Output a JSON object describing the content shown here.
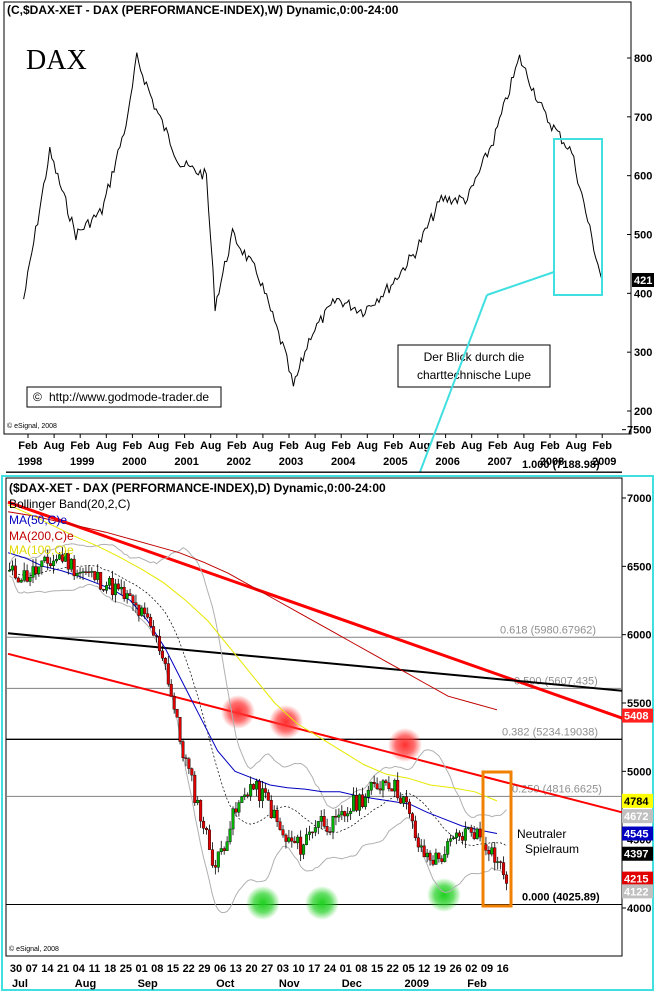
{
  "top_chart": {
    "header": "(C,$DAX-XET - DAX (PERFORMANCE-INDEX),W) Dynamic,0:00-24:00",
    "big_label": "DAX",
    "url_box": "http://www.godmode-trader.de",
    "copyright_symbol": "©",
    "esignal": "© eSignal, 2008",
    "lupe_box": [
      "Der Blick durch die",
      "charttechnische Lupe"
    ],
    "last_price_label": "421",
    "colors": {
      "highlight_box": "#40e0e0",
      "line": "#000000"
    }
  },
  "bottom_chart": {
    "header": "($DAX-XET - DAX (PERFORMANCE-INDEX),D) Dynamic,0:00-24:00",
    "bollinger": "Bollinger Band(20,2,C)",
    "ma50": "MA(50,C)e",
    "ma200": "MA(200,C)e",
    "ma_extra": "MA(100,C)e",
    "fib_labels": [
      "1.000 (7188.98)",
      "0.618 (5980.67962)",
      "0.500 (5607.435)",
      "0.382 (5234.19038)",
      "0.250 (4816.6625)",
      "0.000 (4025.89)"
    ],
    "neutral_box": [
      "Neutraler",
      "Spielraum"
    ],
    "esignal": "© eSignal, 2008",
    "price_tags": [
      {
        "text": "5408",
        "bg": "#ff2020",
        "fg": "#ffffff"
      },
      {
        "text": "4784",
        "bg": "#ffff00",
        "fg": "#000000"
      },
      {
        "text": "4672",
        "bg": "#c0c0c0",
        "fg": "#ffffff"
      },
      {
        "text": "4545",
        "bg": "#0000c0",
        "fg": "#ffffff"
      },
      {
        "text": "4397",
        "bg": "#000000",
        "fg": "#ffffff"
      },
      {
        "text": "4215",
        "bg": "#e00000",
        "fg": "#ffffff"
      },
      {
        "text": "4122",
        "bg": "#c0c0c0",
        "fg": "#ffffff"
      }
    ],
    "colors": {
      "border": "#40e0e0",
      "ma50": "#0000c0",
      "ma200": "#c00000",
      "ma_extra": "#e8e800",
      "trend_red": "#ff0000",
      "box": "#f08000"
    }
  },
  "chart_data": [
    {
      "type": "line",
      "title": "(C,$DAX-XET - DAX (PERFORMANCE-INDEX),W) Dynamic,0:00-24:00",
      "y_axis_ticks": [
        200,
        300,
        400,
        500,
        600,
        700,
        800
      ],
      "x_month_labels": [
        "Feb",
        "Aug",
        "Feb",
        "Aug",
        "Feb",
        "Aug",
        "Feb",
        "Aug",
        "Feb",
        "Aug",
        "Feb",
        "Aug",
        "Feb",
        "Aug",
        "Feb",
        "Aug",
        "Feb",
        "Aug",
        "Feb",
        "Aug",
        "Feb",
        "Aug",
        "Feb"
      ],
      "x_year_labels": [
        "1998",
        "1999",
        "2000",
        "2001",
        "2002",
        "2003",
        "2004",
        "2005",
        "2006",
        "2007",
        "2008",
        "2009"
      ],
      "x": [
        "1998-01",
        "1998-07",
        "1999-01",
        "1999-07",
        "2000-01",
        "2000-03",
        "2000-07",
        "2001-01",
        "2001-07",
        "2001-09",
        "2002-01",
        "2002-07",
        "2003-01",
        "2003-03",
        "2003-07",
        "2004-01",
        "2004-07",
        "2005-01",
        "2005-07",
        "2006-01",
        "2006-07",
        "2007-01",
        "2007-07",
        "2008-01",
        "2008-07",
        "2009-01",
        "2009-02"
      ],
      "values": [
        390,
        640,
        500,
        540,
        700,
        800,
        720,
        620,
        600,
        380,
        500,
        430,
        300,
        240,
        330,
        390,
        370,
        410,
        470,
        560,
        560,
        660,
        800,
        700,
        640,
        450,
        421
      ]
    },
    {
      "type": "bar",
      "title": "($DAX-XET - DAX (PERFORMANCE-INDEX),D) Dynamic,0:00-24:00",
      "y_axis_ticks": [
        4000,
        4500,
        5000,
        5500,
        6000,
        6500,
        7000,
        7500
      ],
      "x_day_labels": [
        "30",
        "07",
        "14",
        "21",
        "04",
        "11",
        "18",
        "25",
        "01",
        "08",
        "15",
        "22",
        "29",
        "06",
        "13",
        "20",
        "27",
        "03",
        "10",
        "17",
        "24",
        "01",
        "08",
        "15",
        "22",
        "05",
        "12",
        "19",
        "26",
        "02",
        "09",
        "16"
      ],
      "x_month_labels": [
        "Jul",
        "Aug",
        "Sep",
        "Oct",
        "Nov",
        "Dec",
        "2009",
        "Feb"
      ],
      "series": [
        {
          "name": "DAX",
          "values": [
            6450,
            6430,
            6500,
            6580,
            6470,
            6420,
            6350,
            6250,
            6100,
            5850,
            5200,
            4750,
            4300,
            4650,
            4900,
            4800,
            4500,
            4450,
            4650,
            4600,
            4750,
            4850,
            4950,
            4800,
            4400,
            4350,
            4500,
            4580,
            4450,
            4215
          ]
        },
        {
          "name": "MA(50,C)e",
          "values": [
            6600,
            6560,
            6500,
            6470,
            6430,
            6380,
            6330,
            6250,
            6100,
            5900,
            5650,
            5400,
            5150,
            5000,
            4950,
            4900,
            4880,
            4870,
            4850,
            4850,
            4820,
            4800,
            4780,
            4760,
            4700,
            4650,
            4600,
            4570,
            4545
          ]
        },
        {
          "name": "MA(200,C)e",
          "values": [
            6900,
            6870,
            6830,
            6790,
            6750,
            6700,
            6650,
            6600,
            6530,
            6450,
            6350,
            6250,
            6150,
            6050,
            5950,
            5850,
            5750,
            5650,
            5550,
            5500,
            5450
          ]
        },
        {
          "name": "MA(100,C)e",
          "values": [
            6950,
            6880,
            6800,
            6720,
            6650,
            6570,
            6480,
            6380,
            6250,
            6100,
            5900,
            5700,
            5500,
            5350,
            5250,
            5150,
            5050,
            4980,
            4950,
            4900,
            4880,
            4850,
            4784
          ]
        }
      ],
      "fibonacci": [
        {
          "level": 1.0,
          "value": 7188.98
        },
        {
          "level": 0.618,
          "value": 5980.67962
        },
        {
          "level": 0.5,
          "value": 5607.435
        },
        {
          "level": 0.382,
          "value": 5234.19038
        },
        {
          "level": 0.25,
          "value": 4816.6625
        },
        {
          "level": 0.0,
          "value": 4025.89
        }
      ],
      "ylim": [
        3700,
        7550
      ]
    }
  ]
}
